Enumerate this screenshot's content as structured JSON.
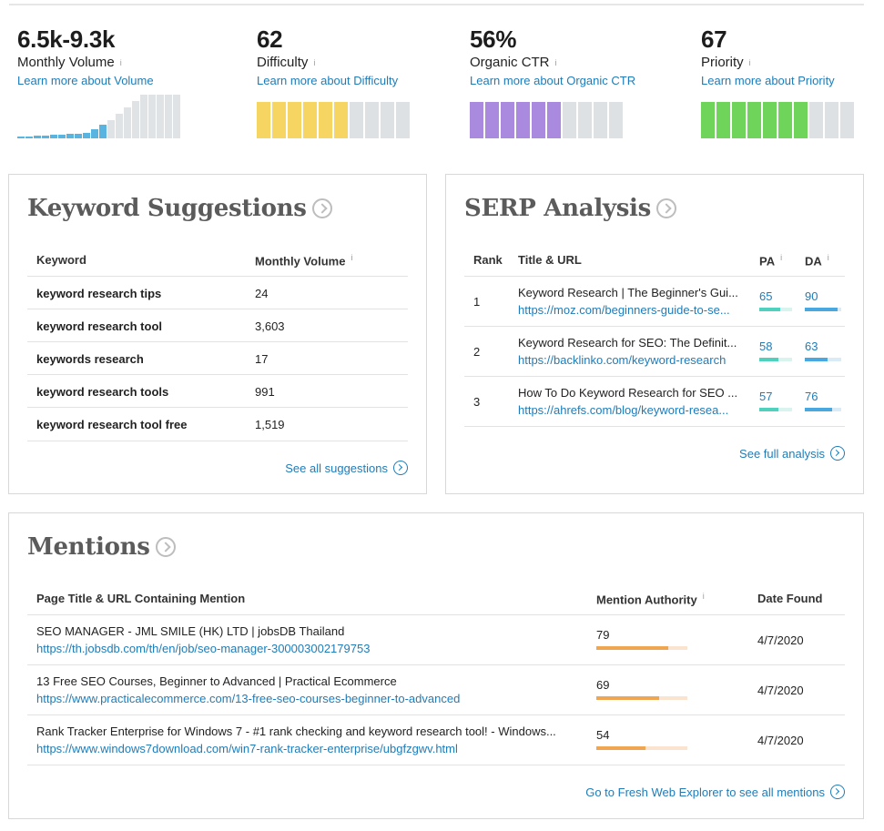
{
  "metrics": [
    {
      "value": "6.5k-9.3k",
      "label": "Monthly Volume",
      "info": "i",
      "learn": "Learn more about Volume",
      "color": "#5ab4e0"
    },
    {
      "value": "62",
      "label": "Difficulty",
      "info": "i",
      "learn": "Learn more about Difficulty",
      "color": "#f7d562",
      "filled_fraction": 0.62
    },
    {
      "value": "56%",
      "label": "Organic CTR",
      "info": "i",
      "learn": "Learn more about Organic CTR",
      "color": "#a98adf",
      "filled_fraction": 0.56
    },
    {
      "value": "67",
      "label": "Priority",
      "info": "i",
      "learn": "Learn more about Priority",
      "color": "#6ed45a",
      "filled_fraction": 0.67
    }
  ],
  "keyword_suggestions": {
    "title": "Keyword Suggestions",
    "col_keyword": "Keyword",
    "col_volume": "Monthly Volume",
    "info": "i",
    "rows": [
      {
        "keyword": "keyword research tips",
        "volume": "24"
      },
      {
        "keyword": "keyword research tool",
        "volume": "3,603"
      },
      {
        "keyword": "keywords research",
        "volume": "17"
      },
      {
        "keyword": "keyword research tools",
        "volume": "991"
      },
      {
        "keyword": "keyword research tool free",
        "volume": "1,519"
      }
    ],
    "see_all": "See all suggestions"
  },
  "serp": {
    "title": "SERP Analysis",
    "col_rank": "Rank",
    "col_title": "Title & URL",
    "col_pa": "PA",
    "col_da": "DA",
    "info": "i",
    "rows": [
      {
        "rank": "1",
        "title": "Keyword Research | The Beginner's Gui...",
        "url": "https://moz.com/beginners-guide-to-se...",
        "pa": "65",
        "da": "90"
      },
      {
        "rank": "2",
        "title": "Keyword Research for SEO: The Definit...",
        "url": "https://backlinko.com/keyword-research",
        "pa": "58",
        "da": "63"
      },
      {
        "rank": "3",
        "title": "How To Do Keyword Research for SEO ...",
        "url": "https://ahrefs.com/blog/keyword-resea...",
        "pa": "57",
        "da": "76"
      }
    ],
    "see_full": "See full analysis",
    "pa_color": "#4fd1bd",
    "da_color": "#4aa8e0"
  },
  "mentions": {
    "title": "Mentions",
    "col_page": "Page Title & URL Containing Mention",
    "col_authority": "Mention Authority",
    "col_date": "Date Found",
    "info": "i",
    "rows": [
      {
        "title": "SEO MANAGER - JML SMILE (HK) LTD | jobsDB Thailand",
        "url": "https://th.jobsdb.com/th/en/job/seo-manager-300003002179753",
        "authority": "79",
        "date": "4/7/2020"
      },
      {
        "title": "13 Free SEO Courses, Beginner to Advanced | Practical Ecommerce",
        "url": "https://www.practicalecommerce.com/13-free-seo-courses-beginner-to-advanced",
        "authority": "69",
        "date": "4/7/2020"
      },
      {
        "title": "Rank Tracker Enterprise for Windows 7 - #1 rank checking and keyword research tool! - Windows...",
        "url": "https://www.windows7download.com/win7-rank-tracker-enterprise/ubgfzgwv.html",
        "authority": "54",
        "date": "4/7/2020"
      }
    ],
    "go_to": "Go to Fresh Web Explorer to see all mentions",
    "bar_color": "#f0a551"
  }
}
